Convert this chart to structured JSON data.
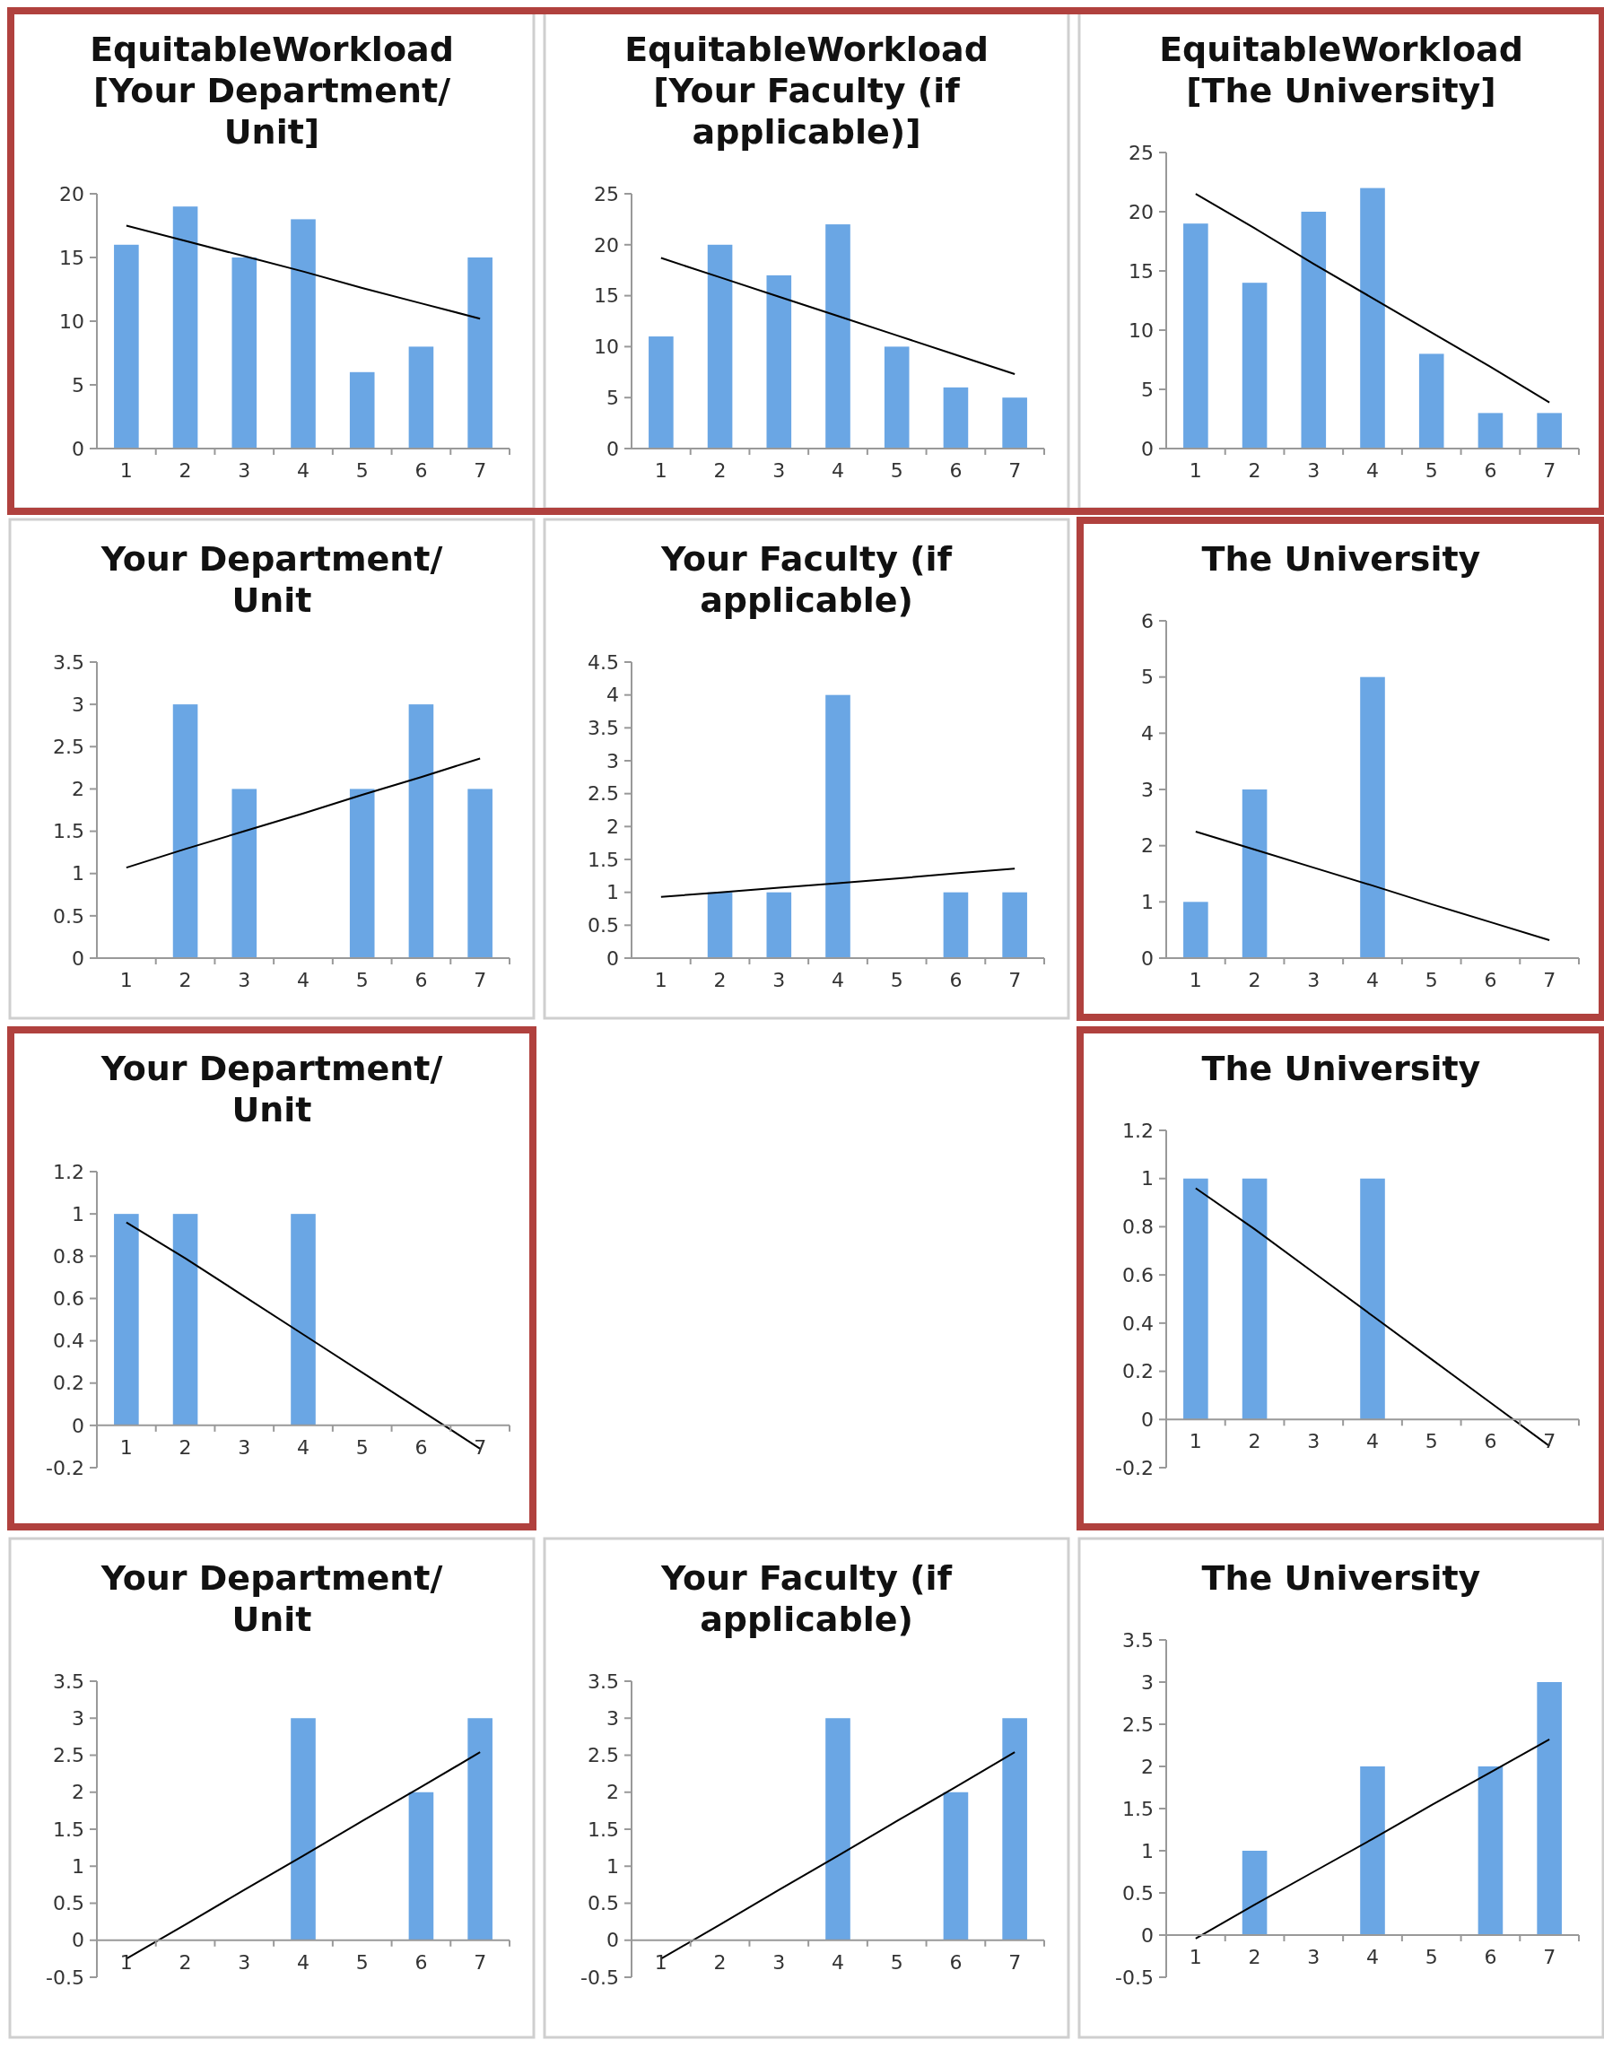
{
  "chart_data": [
    {
      "type": "bar",
      "title": "EquitableWorkload [Your Department/ Unit]",
      "x": [
        1,
        2,
        3,
        4,
        5,
        6,
        7
      ],
      "xlim": [
        0.5,
        7.5
      ],
      "xticks": [
        1,
        2,
        3,
        4,
        5,
        6,
        7
      ],
      "ylim": [
        0,
        20
      ],
      "yticks": [
        0,
        5,
        10,
        15,
        20
      ],
      "series": [
        {
          "color": "#6aa6e4",
          "values": [
            16,
            19,
            15,
            18,
            6,
            8,
            15
          ]
        },
        {
          "type": "line",
          "color": "#000000",
          "values": [
            17.5,
            16.3,
            15.1,
            13.9,
            12.6,
            11.4,
            10.2
          ]
        }
      ]
    },
    {
      "type": "bar",
      "title": "EquitableWorkload [Your Faculty (if applicable)]",
      "x": [
        1,
        2,
        3,
        4,
        5,
        6,
        7
      ],
      "xlim": [
        0.5,
        7.5
      ],
      "xticks": [
        1,
        2,
        3,
        4,
        5,
        6,
        7
      ],
      "ylim": [
        0,
        25
      ],
      "yticks": [
        0,
        5,
        10,
        15,
        20,
        25
      ],
      "series": [
        {
          "color": "#6aa6e4",
          "values": [
            11,
            20,
            17,
            22,
            10,
            6,
            5
          ]
        },
        {
          "type": "line",
          "color": "#000000",
          "values": [
            18.7,
            16.8,
            14.9,
            13.0,
            11.1,
            9.2,
            7.3
          ]
        }
      ]
    },
    {
      "type": "bar",
      "title": "EquitableWorkload [The University]",
      "x": [
        1,
        2,
        3,
        4,
        5,
        6,
        7
      ],
      "xlim": [
        0.5,
        7.5
      ],
      "xticks": [
        1,
        2,
        3,
        4,
        5,
        6,
        7
      ],
      "ylim": [
        0,
        25
      ],
      "yticks": [
        0,
        5,
        10,
        15,
        20,
        25
      ],
      "series": [
        {
          "color": "#6aa6e4",
          "values": [
            19,
            14,
            20,
            22,
            8,
            3,
            3
          ]
        },
        {
          "type": "line",
          "color": "#000000",
          "values": [
            21.5,
            18.6,
            15.6,
            12.7,
            9.8,
            6.9,
            3.9
          ]
        }
      ]
    },
    {
      "type": "bar",
      "title": "Your Department/ Unit",
      "x": [
        1,
        2,
        3,
        4,
        5,
        6,
        7
      ],
      "xlim": [
        0.5,
        7.5
      ],
      "xticks": [
        1,
        2,
        3,
        4,
        5,
        6,
        7
      ],
      "ylim": [
        0,
        3.5
      ],
      "yticks": [
        0,
        0.5,
        1,
        1.5,
        2,
        2.5,
        3,
        3.5
      ],
      "series": [
        {
          "color": "#6aa6e4",
          "values": [
            0,
            3,
            2,
            0,
            2,
            3,
            2
          ]
        },
        {
          "type": "line",
          "color": "#000000",
          "values": [
            1.07,
            1.29,
            1.5,
            1.71,
            1.93,
            2.14,
            2.36
          ]
        }
      ]
    },
    {
      "type": "bar",
      "title": "Your Faculty (if applicable)",
      "x": [
        1,
        2,
        3,
        4,
        5,
        6,
        7
      ],
      "xlim": [
        0.5,
        7.5
      ],
      "xticks": [
        1,
        2,
        3,
        4,
        5,
        6,
        7
      ],
      "ylim": [
        0,
        4.5
      ],
      "yticks": [
        0,
        0.5,
        1,
        1.5,
        2,
        2.5,
        3,
        3.5,
        4,
        4.5
      ],
      "series": [
        {
          "color": "#6aa6e4",
          "values": [
            0,
            1,
            1,
            4,
            0,
            1,
            1
          ]
        },
        {
          "type": "line",
          "color": "#000000",
          "values": [
            0.93,
            1.0,
            1.07,
            1.14,
            1.21,
            1.29,
            1.36
          ]
        }
      ]
    },
    {
      "type": "bar",
      "title": "The University",
      "x": [
        1,
        2,
        3,
        4,
        5,
        6,
        7
      ],
      "xlim": [
        0.5,
        7.5
      ],
      "xticks": [
        1,
        2,
        3,
        4,
        5,
        6,
        7
      ],
      "ylim": [
        0,
        6
      ],
      "yticks": [
        0,
        1,
        2,
        3,
        4,
        5,
        6
      ],
      "series": [
        {
          "color": "#6aa6e4",
          "values": [
            1,
            3,
            0,
            5,
            0,
            0,
            0
          ]
        },
        {
          "type": "line",
          "color": "#000000",
          "values": [
            2.25,
            1.93,
            1.61,
            1.29,
            0.96,
            0.64,
            0.32
          ]
        }
      ]
    },
    {
      "type": "bar",
      "title": "Your Department/ Unit",
      "x": [
        1,
        2,
        3,
        4,
        5,
        6,
        7
      ],
      "xlim": [
        0.5,
        7.5
      ],
      "xticks": [
        1,
        2,
        3,
        4,
        5,
        6,
        7
      ],
      "ylim": [
        -0.2,
        1.2
      ],
      "yticks": [
        -0.2,
        0,
        0.2,
        0.4,
        0.6,
        0.8,
        1,
        1.2
      ],
      "series": [
        {
          "color": "#6aa6e4",
          "values": [
            1,
            1,
            0,
            1,
            0,
            0,
            0
          ]
        },
        {
          "type": "line",
          "color": "#000000",
          "values": [
            0.96,
            0.79,
            0.61,
            0.43,
            0.25,
            0.07,
            -0.11
          ]
        }
      ]
    },
    {
      "type": "bar",
      "title": "The University",
      "x": [
        1,
        2,
        3,
        4,
        5,
        6,
        7
      ],
      "xlim": [
        0.5,
        7.5
      ],
      "xticks": [
        1,
        2,
        3,
        4,
        5,
        6,
        7
      ],
      "ylim": [
        -0.2,
        1.2
      ],
      "yticks": [
        -0.2,
        0,
        0.2,
        0.4,
        0.6,
        0.8,
        1,
        1.2
      ],
      "series": [
        {
          "color": "#6aa6e4",
          "values": [
            1,
            1,
            0,
            1,
            0,
            0,
            0
          ]
        },
        {
          "type": "line",
          "color": "#000000",
          "values": [
            0.96,
            0.79,
            0.61,
            0.43,
            0.25,
            0.07,
            -0.11
          ]
        }
      ]
    },
    {
      "type": "bar",
      "title": "Your Department/ Unit",
      "x": [
        1,
        2,
        3,
        4,
        5,
        6,
        7
      ],
      "xlim": [
        0.5,
        7.5
      ],
      "xticks": [
        1,
        2,
        3,
        4,
        5,
        6,
        7
      ],
      "ylim": [
        -0.5,
        3.5
      ],
      "yticks": [
        -0.5,
        0,
        0.5,
        1,
        1.5,
        2,
        2.5,
        3,
        3.5
      ],
      "series": [
        {
          "color": "#6aa6e4",
          "values": [
            0,
            0,
            0,
            3,
            0,
            2,
            3
          ]
        },
        {
          "type": "line",
          "color": "#000000",
          "values": [
            -0.25,
            0.21,
            0.68,
            1.14,
            1.61,
            2.07,
            2.54
          ]
        }
      ]
    },
    {
      "type": "bar",
      "title": "Your Faculty (if applicable)",
      "x": [
        1,
        2,
        3,
        4,
        5,
        6,
        7
      ],
      "xlim": [
        0.5,
        7.5
      ],
      "xticks": [
        1,
        2,
        3,
        4,
        5,
        6,
        7
      ],
      "ylim": [
        -0.5,
        3.5
      ],
      "yticks": [
        -0.5,
        0,
        0.5,
        1,
        1.5,
        2,
        2.5,
        3,
        3.5
      ],
      "series": [
        {
          "color": "#6aa6e4",
          "values": [
            0,
            0,
            0,
            3,
            0,
            2,
            3
          ]
        },
        {
          "type": "line",
          "color": "#000000",
          "values": [
            -0.25,
            0.21,
            0.68,
            1.14,
            1.61,
            2.07,
            2.54
          ]
        }
      ]
    },
    {
      "type": "bar",
      "title": "The University",
      "x": [
        1,
        2,
        3,
        4,
        5,
        6,
        7
      ],
      "xlim": [
        0.5,
        7.5
      ],
      "xticks": [
        1,
        2,
        3,
        4,
        5,
        6,
        7
      ],
      "ylim": [
        -0.5,
        3.5
      ],
      "yticks": [
        -0.5,
        0,
        0.5,
        1,
        1.5,
        2,
        2.5,
        3,
        3.5
      ],
      "series": [
        {
          "color": "#6aa6e4",
          "values": [
            0,
            1,
            0,
            2,
            0,
            2,
            3
          ]
        },
        {
          "type": "line",
          "color": "#000000",
          "values": [
            -0.04,
            0.36,
            0.75,
            1.14,
            1.54,
            1.93,
            2.32
          ]
        }
      ]
    }
  ]
}
